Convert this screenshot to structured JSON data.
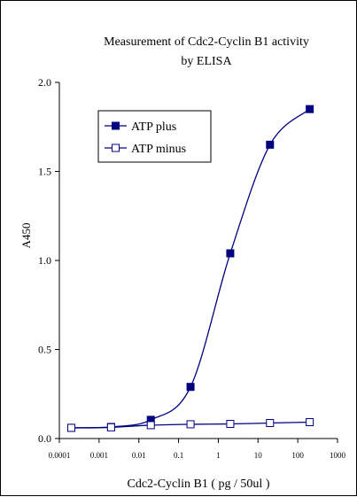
{
  "chart_data": {
    "type": "line",
    "title": "Measurement of Cdc2-Cyclin B1 activity",
    "subtitle": "by ELISA",
    "xlabel": "Cdc2-Cyclin B1 ( pg / 50ul )",
    "ylabel": "A450",
    "x_scale": "log",
    "xlim": [
      0.0001,
      1000
    ],
    "ylim": [
      0,
      2.0
    ],
    "x_ticks": [
      "0.0001",
      "0.001",
      "0.01",
      "0.1",
      "1",
      "10",
      "100",
      "1000"
    ],
    "y_ticks": [
      "0.0",
      "0.5",
      "1.0",
      "1.5",
      "2.0"
    ],
    "grid": false,
    "legend_placement": "top-left",
    "series": [
      {
        "name": "ATP plus",
        "marker": "filled-square",
        "color": "#000080",
        "x": [
          0.0002,
          0.002,
          0.02,
          0.2,
          2,
          20,
          200
        ],
        "y": [
          0.06,
          0.065,
          0.105,
          0.29,
          1.04,
          1.65,
          1.85
        ]
      },
      {
        "name": "ATP minus",
        "marker": "open-square",
        "color": "#000080",
        "x": [
          0.0002,
          0.002,
          0.02,
          0.2,
          2,
          20,
          200
        ],
        "y": [
          0.06,
          0.063,
          0.075,
          0.08,
          0.082,
          0.087,
          0.092
        ]
      }
    ]
  }
}
